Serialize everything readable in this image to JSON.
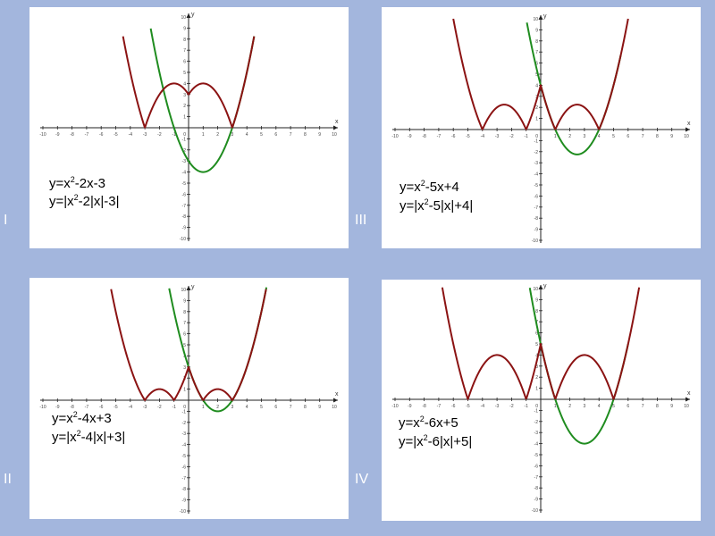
{
  "colors": {
    "curve_green": "#1f8c1f",
    "curve_red": "#8b1313",
    "axis": "#222222",
    "page_bg": "#a3b6dd"
  },
  "panels": [
    {
      "id": "p1",
      "roman": "I",
      "eq1": {
        "a": "y=x",
        "sup": "2",
        "b": "-2x-3"
      },
      "eq2": {
        "a": "y=|x",
        "sup": "2",
        "b": "-2|x|-3|"
      }
    },
    {
      "id": "p3",
      "roman": "III",
      "eq1": {
        "a": "y=x",
        "sup": "2",
        "b": "-5x+4"
      },
      "eq2": {
        "a": "y=|x",
        "sup": "2",
        "b": "-5|x|+4|"
      }
    },
    {
      "id": "p2",
      "roman": "II",
      "eq1": {
        "a": "y=x",
        "sup": "2",
        "b": "-4x+3"
      },
      "eq2": {
        "a": "y=|x",
        "sup": "2",
        "b": "-4|x|+3|"
      }
    },
    {
      "id": "p4",
      "roman": "IV",
      "eq1": {
        "a": "y=x",
        "sup": "2",
        "b": "-6x+5"
      },
      "eq2": {
        "a": "y=|x",
        "sup": "2",
        "b": "-6|x|+5|"
      }
    }
  ],
  "chart_data": [
    {
      "type": "line",
      "panel": "I",
      "axes": {
        "xlabel": "x",
        "ylabel": "y",
        "xlim": [
          -10,
          10
        ],
        "ylim": [
          -10,
          10
        ],
        "x_ticks": [
          -10,
          -9,
          -8,
          -7,
          -6,
          -5,
          -4,
          -3,
          -2,
          -1,
          0,
          1,
          2,
          3,
          4,
          5,
          6,
          7,
          8,
          9,
          10
        ],
        "y_ticks": [
          -10,
          -9,
          -8,
          -7,
          -6,
          -5,
          -4,
          -3,
          -2,
          -1,
          0,
          1,
          2,
          3,
          4,
          5,
          6,
          7,
          8,
          9,
          10
        ],
        "grid": false
      },
      "series": [
        {
          "color": "green",
          "kind": "quadratic",
          "coef": [
            1,
            -2,
            -3
          ],
          "x_range": [
            -2.6,
            4.5
          ]
        },
        {
          "color": "red",
          "kind": "abs_even_quadratic",
          "coef": [
            1,
            -2,
            -3
          ],
          "x_range": [
            -4.5,
            4.5
          ]
        }
      ]
    },
    {
      "type": "line",
      "panel": "III",
      "axes": {
        "xlabel": "x",
        "ylabel": "y",
        "xlim": [
          -10,
          10
        ],
        "ylim": [
          -10,
          10
        ],
        "x_ticks": [
          -10,
          -9,
          -8,
          -7,
          -6,
          -5,
          -4,
          -3,
          -2,
          -1,
          0,
          1,
          2,
          3,
          4,
          5,
          6,
          7,
          8,
          9,
          10
        ],
        "y_ticks": [
          -10,
          -9,
          -8,
          -7,
          -6,
          -5,
          -4,
          -3,
          -2,
          -1,
          0,
          1,
          2,
          3,
          4,
          5,
          6,
          7,
          8,
          9,
          10
        ],
        "grid": false
      },
      "series": [
        {
          "color": "green",
          "kind": "quadratic",
          "coef": [
            1,
            -5,
            4
          ],
          "x_range": [
            -0.95,
            5.5
          ]
        },
        {
          "color": "red",
          "kind": "abs_even_quadratic",
          "coef": [
            1,
            -5,
            4
          ],
          "x_range": [
            -6,
            6
          ]
        }
      ]
    },
    {
      "type": "line",
      "panel": "II",
      "axes": {
        "xlabel": "x",
        "ylabel": "y",
        "xlim": [
          -10,
          10
        ],
        "ylim": [
          -10,
          10
        ],
        "x_ticks": [
          -10,
          -9,
          -8,
          -7,
          -6,
          -5,
          -4,
          -3,
          -2,
          -1,
          0,
          1,
          2,
          3,
          4,
          5,
          6,
          7,
          8,
          9,
          10
        ],
        "y_ticks": [
          -10,
          -9,
          -8,
          -7,
          -6,
          -5,
          -4,
          -3,
          -2,
          -1,
          0,
          1,
          2,
          3,
          4,
          5,
          6,
          7,
          8,
          9,
          10
        ],
        "grid": false
      },
      "series": [
        {
          "color": "green",
          "kind": "quadratic",
          "coef": [
            1,
            -4,
            3
          ],
          "x_range": [
            -1.4,
            5.5
          ]
        },
        {
          "color": "red",
          "kind": "abs_even_quadratic",
          "coef": [
            1,
            -4,
            3
          ],
          "x_range": [
            -5.6,
            5.6
          ]
        }
      ]
    },
    {
      "type": "line",
      "panel": "IV",
      "axes": {
        "xlabel": "x",
        "ylabel": "y",
        "xlim": [
          -10,
          10
        ],
        "ylim": [
          -10,
          10
        ],
        "x_ticks": [
          -10,
          -9,
          -8,
          -7,
          -6,
          -5,
          -4,
          -3,
          -2,
          -1,
          0,
          1,
          2,
          3,
          4,
          5,
          6,
          7,
          8,
          9,
          10
        ],
        "y_ticks": [
          -10,
          -9,
          -8,
          -7,
          -6,
          -5,
          -4,
          -3,
          -2,
          -1,
          0,
          1,
          2,
          3,
          4,
          5,
          6,
          7,
          8,
          9,
          10
        ],
        "grid": false
      },
      "series": [
        {
          "color": "green",
          "kind": "quadratic",
          "coef": [
            1,
            -6,
            5
          ],
          "x_range": [
            -0.75,
            6
          ]
        },
        {
          "color": "red",
          "kind": "abs_even_quadratic",
          "coef": [
            1,
            -6,
            5
          ],
          "x_range": [
            -7,
            7
          ]
        }
      ]
    }
  ]
}
